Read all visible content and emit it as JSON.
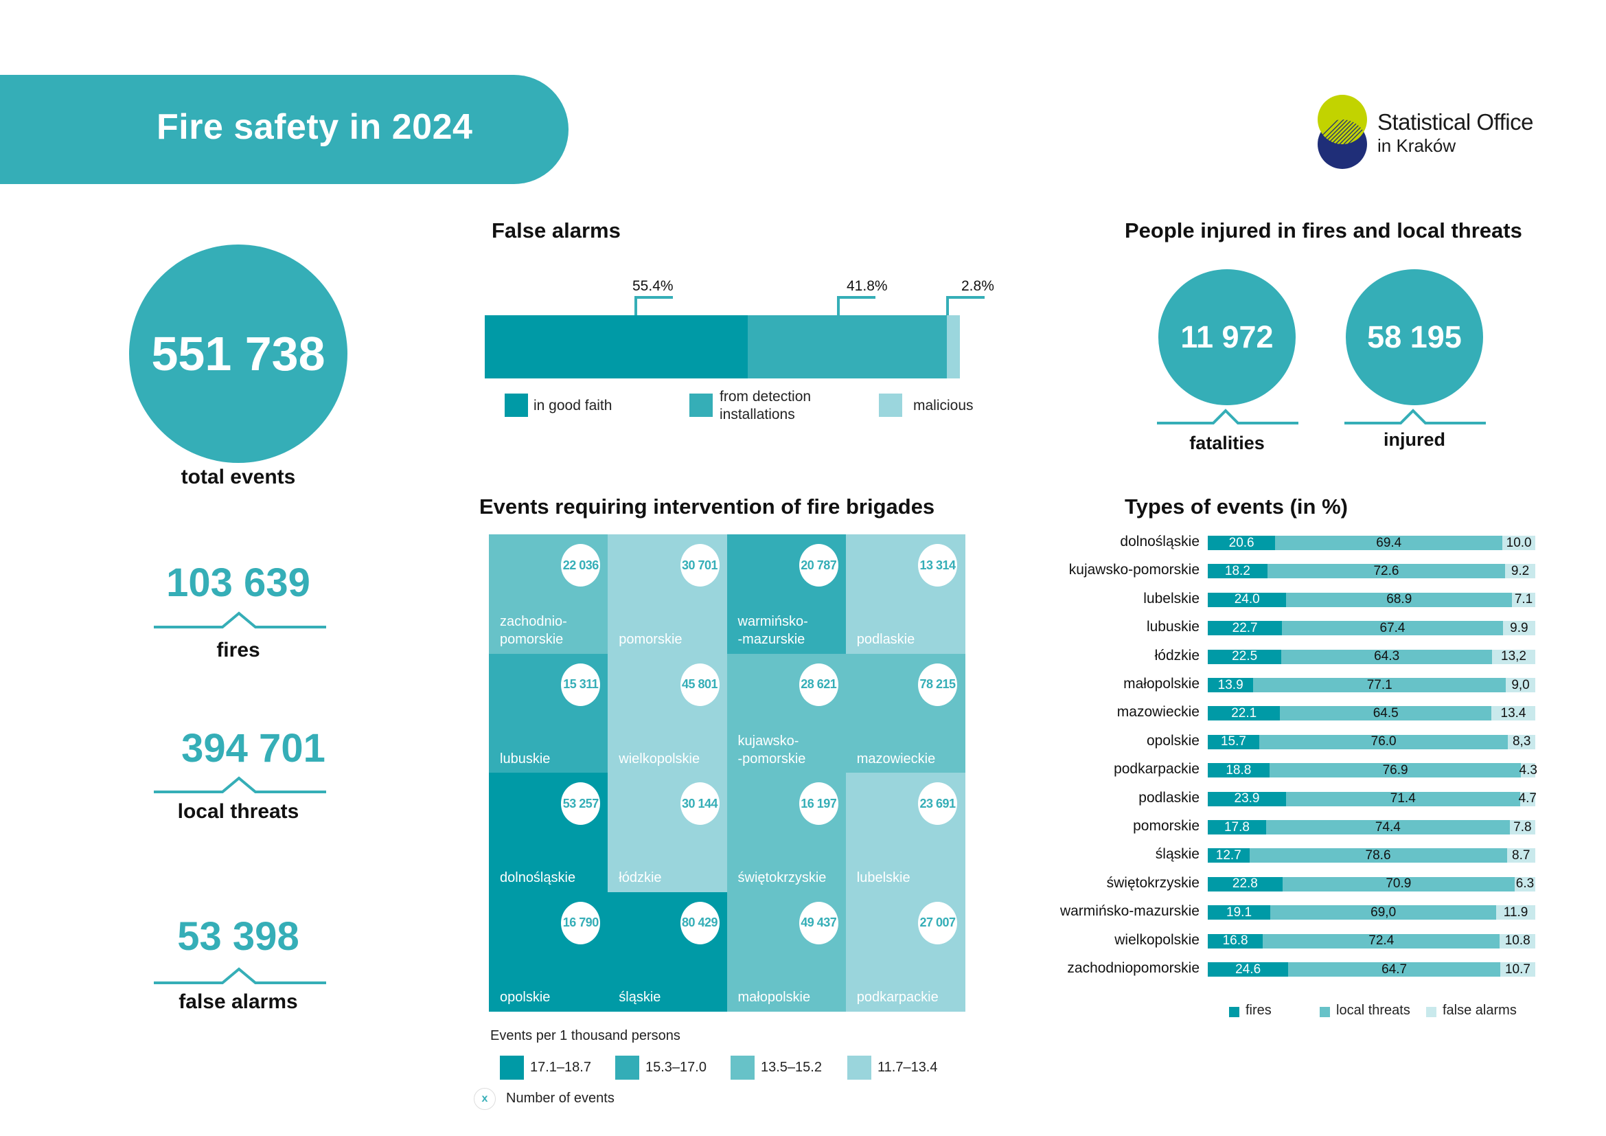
{
  "header": {
    "title": "Fire safety in 2024",
    "logo_line1": "Statistical Office",
    "logo_line2": "in Kraków",
    "colors": {
      "banner": "#35aeb7",
      "logo_lime": "#c2d300",
      "logo_navy": "#1f2e78"
    }
  },
  "totals": {
    "total_events": {
      "value": "551 738",
      "label": "total events"
    },
    "fires": {
      "value": "103 639",
      "label": "fires"
    },
    "local_threats": {
      "value": "394 701",
      "label": "local threats"
    },
    "false_alarms": {
      "value": "53 398",
      "label": "false alarms"
    }
  },
  "people": {
    "title": "People injured in fires and local threats",
    "fatalities": {
      "value": "11 972",
      "label": "fatalities"
    },
    "injured": {
      "value": "58 195",
      "label": "injured"
    }
  },
  "chart_data": [
    {
      "type": "bar",
      "subtype": "stacked-100-horizontal",
      "title": "False alarms",
      "categories": [
        "in good faith",
        "from detection installations",
        "malicious"
      ],
      "values": [
        55.4,
        41.8,
        2.8
      ],
      "value_labels": [
        "55.4%",
        "41.8%",
        "2.8%"
      ],
      "colors": [
        "#009aa6",
        "#35aeb7",
        "#9bd6dd"
      ],
      "legend_labels": [
        "in good faith",
        "from detection\ninstallations",
        "malicious"
      ],
      "legend": "bottom"
    },
    {
      "type": "heatmap",
      "subtype": "tile-grid-map",
      "title": "Events requiring intervention of fire brigades",
      "legend_title": "Events per 1 thousand persons",
      "classes": [
        {
          "label": "17.1–18.7",
          "color": "#009aa6"
        },
        {
          "label": "15.3–17.0",
          "color": "#33adb7"
        },
        {
          "label": "13.5–15.2",
          "color": "#67c2c8"
        },
        {
          "label": "11.7–13.4",
          "color": "#9ad5dc"
        }
      ],
      "bubble_legend_symbol": "x",
      "bubble_legend_label": "Number of events",
      "tiles": [
        {
          "name": "zachodnio-\npomorskie",
          "events": "22 036",
          "class": 2,
          "row": 0,
          "col": 0
        },
        {
          "name": "pomorskie",
          "events": "30 701",
          "class": 3,
          "row": 0,
          "col": 1
        },
        {
          "name": "warmińsko-\n-mazurskie",
          "events": "20 787",
          "class": 1,
          "row": 0,
          "col": 2
        },
        {
          "name": "podlaskie",
          "events": "13 314",
          "class": 3,
          "row": 0,
          "col": 3
        },
        {
          "name": "lubuskie",
          "events": "15 311",
          "class": 1,
          "row": 1,
          "col": 0
        },
        {
          "name": "wielkopolskie",
          "events": "45 801",
          "class": 3,
          "row": 1,
          "col": 1
        },
        {
          "name": "kujawsko-\n-pomorskie",
          "events": "28 621",
          "class": 2,
          "row": 1,
          "col": 2
        },
        {
          "name": "mazowieckie",
          "events": "78 215",
          "class": 2,
          "row": 1,
          "col": 3
        },
        {
          "name": "dolnośląskie",
          "events": "53 257",
          "class": 0,
          "row": 2,
          "col": 0
        },
        {
          "name": "łódzkie",
          "events": "30 144",
          "class": 3,
          "row": 2,
          "col": 1
        },
        {
          "name": "świętokrzyskie",
          "events": "16 197",
          "class": 2,
          "row": 2,
          "col": 2
        },
        {
          "name": "lubelskie",
          "events": "23 691",
          "class": 3,
          "row": 2,
          "col": 3
        },
        {
          "name": "opolskie",
          "events": "16 790",
          "class": 0,
          "row": 3,
          "col": 0
        },
        {
          "name": "śląskie",
          "events": "80 429",
          "class": 0,
          "row": 3,
          "col": 1
        },
        {
          "name": "małopolskie",
          "events": "49 437",
          "class": 2,
          "row": 3,
          "col": 2
        },
        {
          "name": "podkarpackie",
          "events": "27 007",
          "class": 3,
          "row": 3,
          "col": 3
        }
      ]
    },
    {
      "type": "bar",
      "subtype": "stacked-100-horizontal",
      "title": "Types of events (in %)",
      "categories": [
        "dolnośląskie",
        "kujawsko-pomorskie",
        "lubelskie",
        "lubuskie",
        "łódzkie",
        "małopolskie",
        "mazowieckie",
        "opolskie",
        "podkarpackie",
        "podlaskie",
        "pomorskie",
        "śląskie",
        "świętokrzyskie",
        "warmińsko-mazurskie",
        "wielkopolskie",
        "zachodniopomorskie"
      ],
      "series": [
        {
          "name": "fires",
          "color": "#009aa6",
          "values": [
            20.6,
            18.2,
            24.0,
            22.7,
            22.5,
            13.9,
            22.1,
            15.7,
            18.8,
            23.9,
            17.8,
            12.7,
            22.8,
            19.1,
            16.8,
            24.6
          ],
          "labels": [
            "20.6",
            "18.2",
            "24.0",
            "22.7",
            "22.5",
            "13.9",
            "22.1",
            "15.7",
            "18.8",
            "23.9",
            "17.8",
            "12.7",
            "22.8",
            "19.1",
            "16.8",
            "24.6"
          ]
        },
        {
          "name": "local threats",
          "color": "#67c2c8",
          "values": [
            69.4,
            72.6,
            68.9,
            67.4,
            64.3,
            77.1,
            64.5,
            76.0,
            76.9,
            71.4,
            74.4,
            78.6,
            70.9,
            69.0,
            72.4,
            64.7
          ],
          "labels": [
            "69.4",
            "72.6",
            "68.9",
            "67.4",
            "64.3",
            "77.1",
            "64.5",
            "76.0",
            "76.9",
            "71.4",
            "74.4",
            "78.6",
            "70.9",
            "69,0",
            "72.4",
            "64.7"
          ]
        },
        {
          "name": "false alarms",
          "color": "#c9e9ec",
          "values": [
            10.0,
            9.2,
            7.1,
            9.9,
            13.2,
            9.0,
            13.4,
            8.3,
            4.3,
            4.7,
            7.8,
            8.7,
            6.3,
            11.9,
            10.8,
            10.7
          ],
          "labels": [
            "10.0",
            "9.2",
            "7.1",
            "9.9",
            "13,2",
            "9,0",
            "13.4",
            "8,3",
            "4.3",
            "4.7",
            "7.8",
            "8.7",
            "6.3",
            "11.9",
            "10.8",
            "10.7"
          ]
        }
      ],
      "xlim": [
        0,
        100
      ],
      "legend": "bottom"
    }
  ]
}
